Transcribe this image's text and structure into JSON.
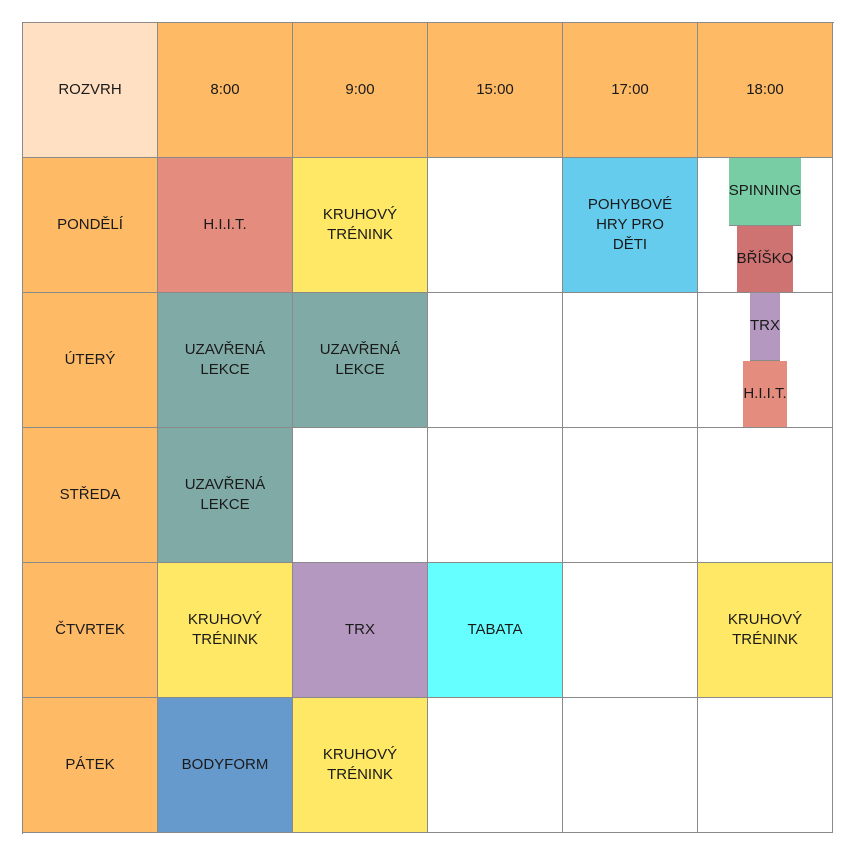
{
  "corner": "ROZVRH",
  "times": [
    "8:00",
    "9:00",
    "15:00",
    "17:00",
    "18:00"
  ],
  "days": [
    "PONDĚLÍ",
    "ÚTERÝ",
    "STŘEDA",
    "ČTVRTEK",
    "PÁTEK"
  ],
  "colors": {
    "corner": "#FFE0C2",
    "header": "#FFBA66",
    "hiit": "#E48D7E",
    "kruhovy": "#FFE866",
    "pohybove": "#66CCEE",
    "spinning": "#79CDA5",
    "brisko": "#CF7272",
    "trx": "#B598C0",
    "uzavrena": "#7FAAA6",
    "tabata": "#66FFFF",
    "bodyform": "#6699CC",
    "empty": "#FFFFFF"
  },
  "schedule": {
    "mon": {
      "t800": "H.I.I.T.",
      "t900": "KRUHOVÝ\nTRÉNINK",
      "t1500": "",
      "t1700": "POHYBOVÉ\nHRY PRO\nDĚTI",
      "t1800a": "SPINNING",
      "t1800b": "BŘÍŠKO"
    },
    "tue": {
      "t800": "UZAVŘENÁ\nLEKCE",
      "t900": "UZAVŘENÁ\nLEKCE",
      "t1500": "",
      "t1700": "",
      "t1800a": "TRX",
      "t1800b": "H.I.I.T."
    },
    "wed": {
      "t800": "UZAVŘENÁ\nLEKCE",
      "t900": "",
      "t1500": "",
      "t1700": "",
      "t1800": ""
    },
    "thu": {
      "t800": "KRUHOVÝ\nTRÉNINK",
      "t900": "TRX",
      "t1500": "TABATA",
      "t1700": "",
      "t1800": "KRUHOVÝ\nTRÉNINK"
    },
    "fri": {
      "t800": "BODYFORM",
      "t900": "KRUHOVÝ\nTRÉNINK",
      "t1500": "",
      "t1700": "",
      "t1800": ""
    }
  }
}
